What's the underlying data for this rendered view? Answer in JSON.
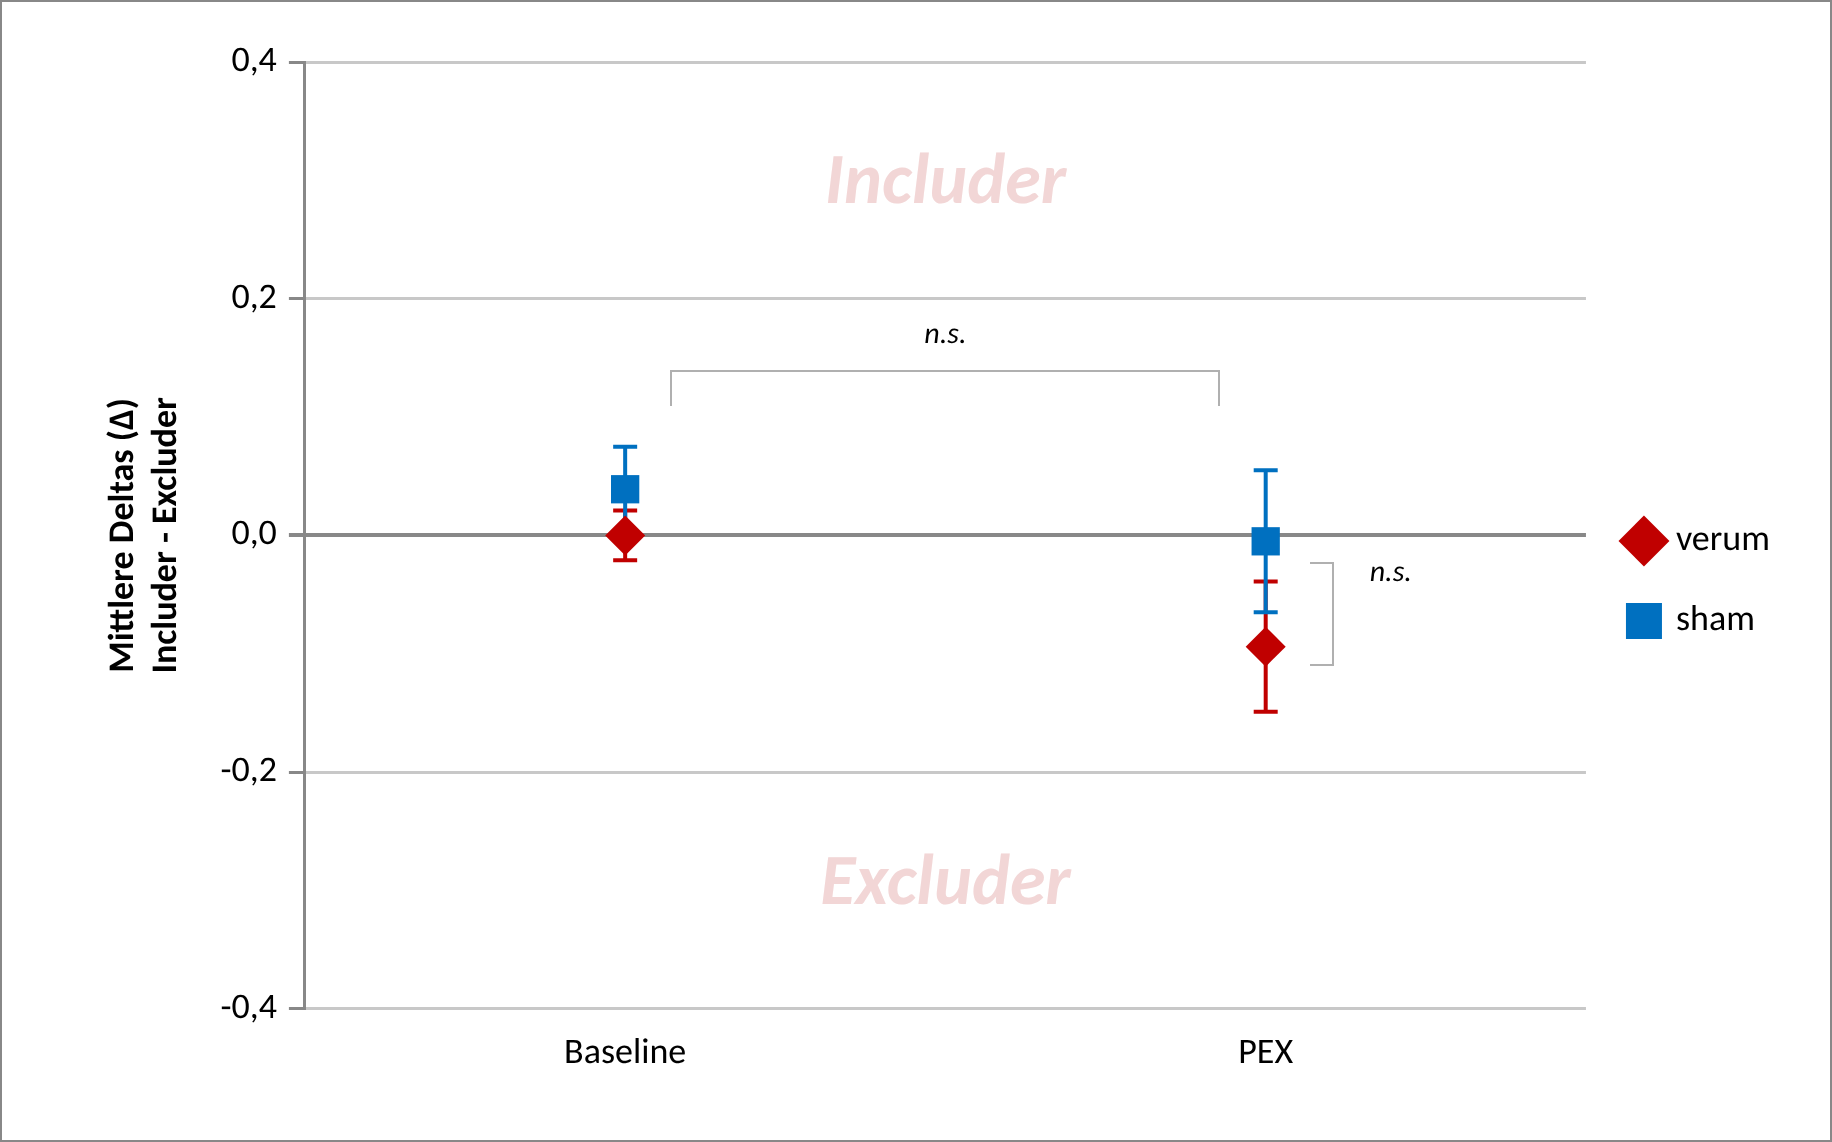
{
  "chart_data": {
    "type": "scatter",
    "ylabel": "Mittlere Deltas (Δ)\nIncluder - Excluder",
    "categories": [
      "Baseline",
      "PEX"
    ],
    "series": [
      {
        "name": "verum",
        "color": "#c00000",
        "marker": "diamond",
        "values": [
          0.0,
          -0.094
        ],
        "errors": [
          0.021,
          0.055
        ]
      },
      {
        "name": "sham",
        "color": "#0070c0",
        "marker": "square",
        "values": [
          0.039,
          -0.005
        ],
        "errors": [
          0.036,
          0.06
        ]
      }
    ],
    "ylim": [
      -0.4,
      0.4
    ],
    "yticks": [
      {
        "value": -0.4,
        "label": "-0,4"
      },
      {
        "value": -0.2,
        "label": "-0,2"
      },
      {
        "value": 0,
        "label": "0,0"
      },
      {
        "value": 0.2,
        "label": "0,2"
      },
      {
        "value": 0.4,
        "label": "0,4"
      }
    ],
    "grid": "y",
    "legend": "right",
    "annotations": [
      "Includer",
      "Excluder",
      "n.s.",
      "n.s."
    ]
  }
}
